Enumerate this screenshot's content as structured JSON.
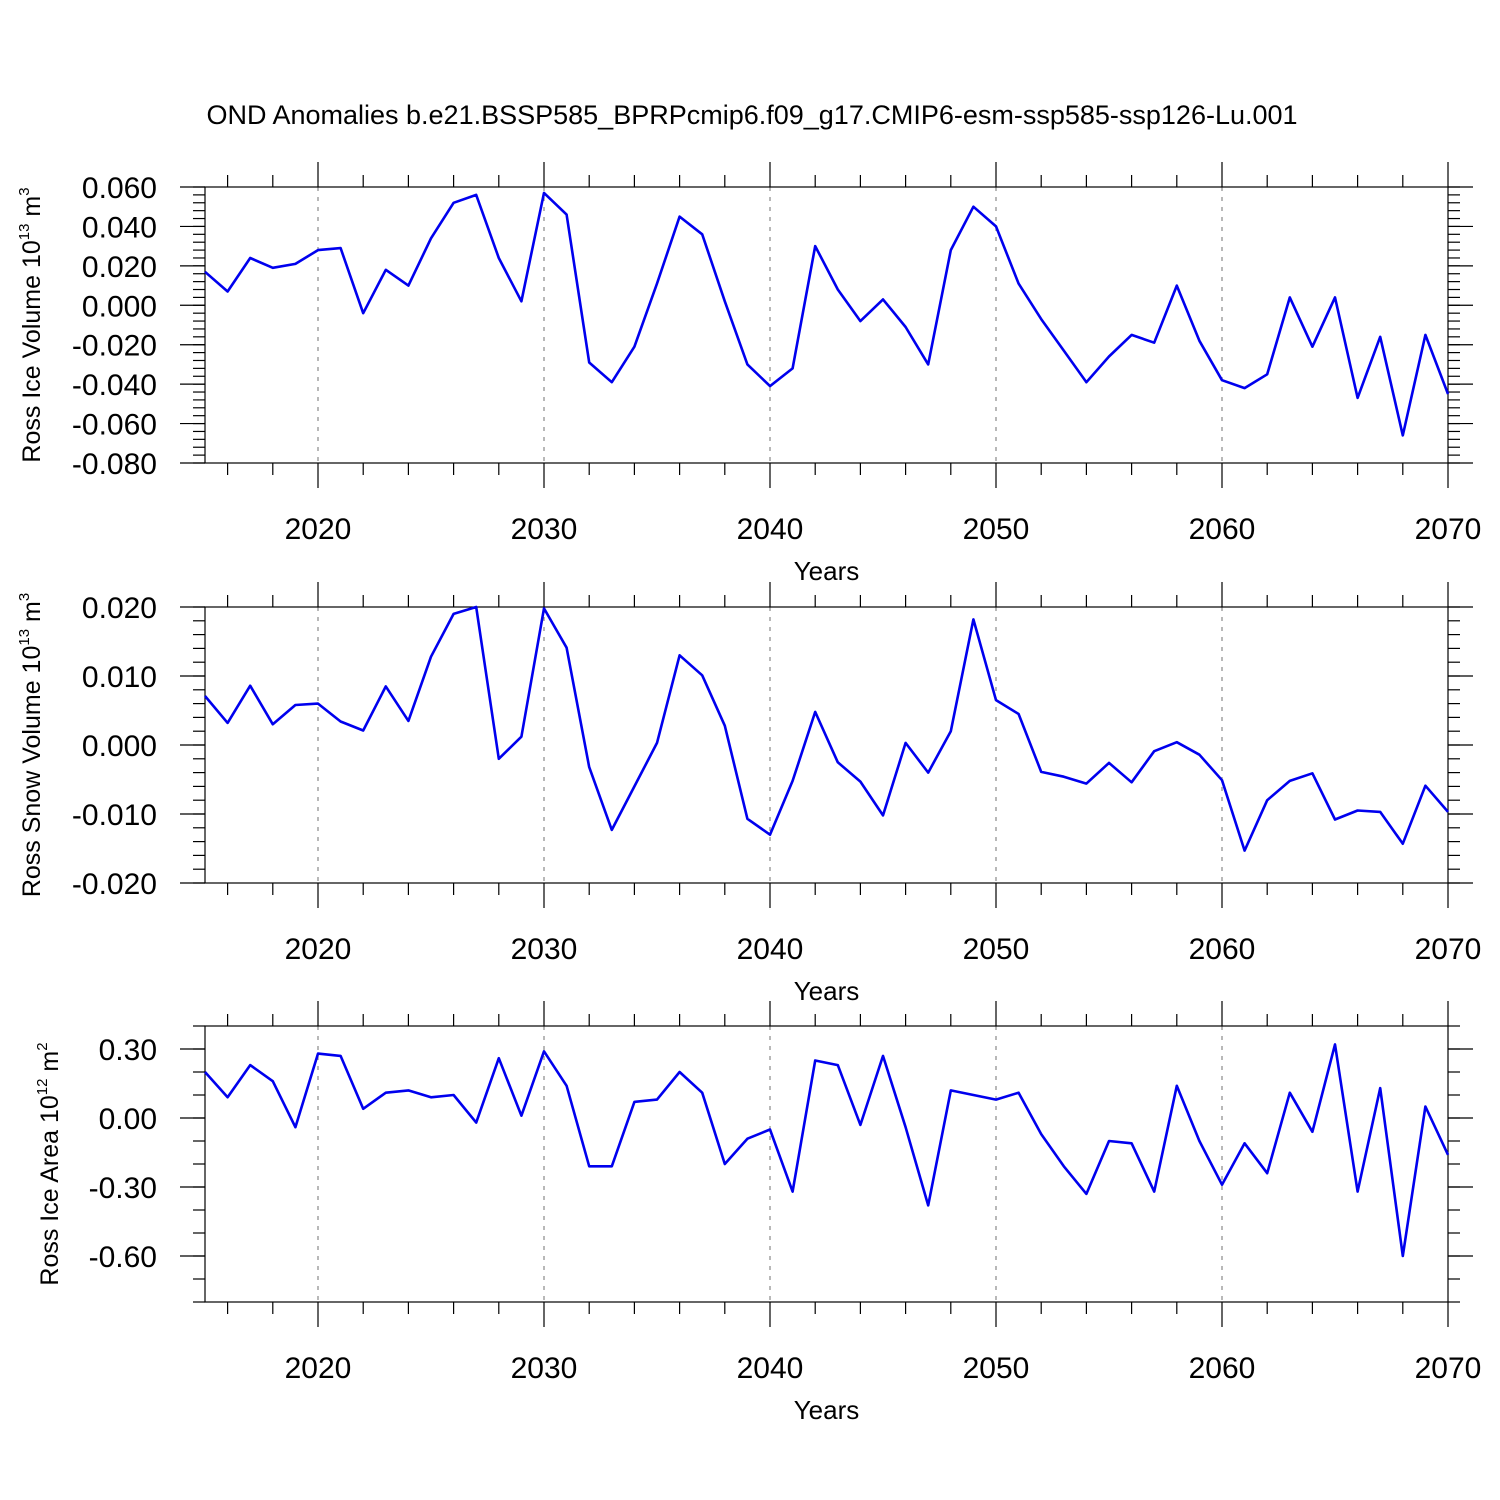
{
  "title": "OND Anomalies b.e21.BSSP585_BPRPcmip6.f09_g17.CMIP6-esm-ssp585-ssp126-Lu.001",
  "chart_data": [
    {
      "type": "line",
      "ylabel": {
        "text": "Ross Ice Volume 10",
        "sup": "13",
        "unit": " m",
        "unit_sup": "3"
      },
      "xlabel": "Years",
      "xlim": [
        2015,
        2070
      ],
      "ylim": [
        -0.08,
        0.06
      ],
      "x_ticks": [
        2020,
        2030,
        2040,
        2050,
        2060,
        2070
      ],
      "x_tick_labels": [
        "2020",
        "2030",
        "2040",
        "2050",
        "2060",
        "2070"
      ],
      "y_ticks": [
        0.06,
        0.04,
        0.02,
        0.0,
        -0.02,
        -0.04,
        -0.06,
        -0.08
      ],
      "y_tick_labels": [
        "0.060",
        "0.040",
        "0.020",
        "0.000",
        "-0.020",
        "-0.040",
        "-0.060",
        "-0.080"
      ],
      "y_minor_step": 0.004,
      "grid": "dashed vertical lines at major x ticks",
      "color": "#0000ee",
      "x": [
        2015,
        2016,
        2017,
        2018,
        2019,
        2020,
        2021,
        2022,
        2023,
        2024,
        2025,
        2026,
        2027,
        2028,
        2029,
        2030,
        2031,
        2032,
        2033,
        2034,
        2035,
        2036,
        2037,
        2038,
        2039,
        2040,
        2041,
        2042,
        2043,
        2044,
        2045,
        2046,
        2047,
        2048,
        2049,
        2050,
        2051,
        2052,
        2053,
        2054,
        2055,
        2056,
        2057,
        2058,
        2059,
        2060,
        2061,
        2062,
        2063,
        2064,
        2065,
        2066,
        2067,
        2068,
        2069,
        2070
      ],
      "values": [
        0.017,
        0.007,
        0.024,
        0.019,
        0.021,
        0.028,
        0.029,
        -0.004,
        0.018,
        0.01,
        0.034,
        0.052,
        0.056,
        0.024,
        0.002,
        0.057,
        0.046,
        -0.029,
        -0.039,
        -0.021,
        0.011,
        0.045,
        0.036,
        0.002,
        -0.03,
        -0.041,
        -0.032,
        0.03,
        0.008,
        -0.008,
        0.003,
        -0.011,
        -0.03,
        0.028,
        0.05,
        0.04,
        0.011,
        -0.007,
        -0.023,
        -0.039,
        -0.026,
        -0.015,
        -0.019,
        0.01,
        -0.018,
        -0.038,
        -0.042,
        -0.035,
        0.004,
        -0.021,
        0.004,
        -0.047,
        -0.016,
        -0.066,
        -0.015,
        -0.045
      ]
    },
    {
      "type": "line",
      "ylabel": {
        "text": "Ross Snow Volume 10",
        "sup": "13",
        "unit": " m",
        "unit_sup": "3"
      },
      "xlabel": "Years",
      "xlim": [
        2015,
        2070
      ],
      "ylim": [
        -0.02,
        0.02
      ],
      "x_ticks": [
        2020,
        2030,
        2040,
        2050,
        2060,
        2070
      ],
      "x_tick_labels": [
        "2020",
        "2030",
        "2040",
        "2050",
        "2060",
        "2070"
      ],
      "y_ticks": [
        0.02,
        0.01,
        0.0,
        -0.01,
        -0.02
      ],
      "y_tick_labels": [
        "0.020",
        "0.010",
        "0.000",
        "-0.010",
        "-0.020"
      ],
      "y_minor_step": 0.002,
      "grid": "dashed vertical lines at major x ticks",
      "color": "#0000ee",
      "x": [
        2015,
        2016,
        2017,
        2018,
        2019,
        2020,
        2021,
        2022,
        2023,
        2024,
        2025,
        2026,
        2027,
        2028,
        2029,
        2030,
        2031,
        2032,
        2033,
        2034,
        2035,
        2036,
        2037,
        2038,
        2039,
        2040,
        2041,
        2042,
        2043,
        2044,
        2045,
        2046,
        2047,
        2048,
        2049,
        2050,
        2051,
        2052,
        2053,
        2054,
        2055,
        2056,
        2057,
        2058,
        2059,
        2060,
        2061,
        2062,
        2063,
        2064,
        2065,
        2066,
        2067,
        2068,
        2069,
        2070
      ],
      "values": [
        0.0071,
        0.0032,
        0.0086,
        0.003,
        0.0058,
        0.006,
        0.0034,
        0.0021,
        0.0085,
        0.0035,
        0.0128,
        0.019,
        0.02,
        -0.002,
        0.0012,
        0.0198,
        0.0141,
        -0.0032,
        -0.0123,
        -0.006,
        0.0003,
        0.013,
        0.0101,
        0.0028,
        -0.0107,
        -0.013,
        -0.0052,
        0.0048,
        -0.0025,
        -0.0053,
        -0.0102,
        0.0003,
        -0.004,
        0.002,
        0.0182,
        0.0065,
        0.0045,
        -0.0039,
        -0.0046,
        -0.0056,
        -0.0026,
        -0.0054,
        -0.0009,
        0.0004,
        -0.0014,
        -0.0051,
        -0.0153,
        -0.008,
        -0.0052,
        -0.0041,
        -0.0108,
        -0.0095,
        -0.0097,
        -0.0143,
        -0.0059,
        -0.0097
      ]
    },
    {
      "type": "line",
      "ylabel": {
        "text": "Ross Ice Area 10",
        "sup": "12",
        "unit": " m",
        "unit_sup": "2"
      },
      "xlabel": "Years",
      "xlim": [
        2015,
        2070
      ],
      "ylim": [
        -0.8,
        0.4
      ],
      "x_ticks": [
        2020,
        2030,
        2040,
        2050,
        2060,
        2070
      ],
      "x_tick_labels": [
        "2020",
        "2030",
        "2040",
        "2050",
        "2060",
        "2070"
      ],
      "y_ticks": [
        0.3,
        0.0,
        -0.3,
        -0.6
      ],
      "y_tick_labels": [
        "0.30",
        "0.00",
        "-0.30",
        "-0.60"
      ],
      "y_minor_step": 0.1,
      "grid": "dashed vertical lines at major x ticks",
      "color": "#0000ee",
      "x": [
        2015,
        2016,
        2017,
        2018,
        2019,
        2020,
        2021,
        2022,
        2023,
        2024,
        2025,
        2026,
        2027,
        2028,
        2029,
        2030,
        2031,
        2032,
        2033,
        2034,
        2035,
        2036,
        2037,
        2038,
        2039,
        2040,
        2041,
        2042,
        2043,
        2044,
        2045,
        2046,
        2047,
        2048,
        2049,
        2050,
        2051,
        2052,
        2053,
        2054,
        2055,
        2056,
        2057,
        2058,
        2059,
        2060,
        2061,
        2062,
        2063,
        2064,
        2065,
        2066,
        2067,
        2068,
        2069,
        2070
      ],
      "values": [
        0.2,
        0.09,
        0.23,
        0.16,
        -0.04,
        0.28,
        0.27,
        0.04,
        0.11,
        0.12,
        0.09,
        0.1,
        -0.02,
        0.26,
        0.01,
        0.29,
        0.14,
        -0.21,
        -0.21,
        0.07,
        0.08,
        0.2,
        0.11,
        -0.2,
        -0.09,
        -0.05,
        -0.32,
        0.25,
        0.23,
        -0.03,
        0.27,
        -0.04,
        -0.38,
        0.12,
        0.1,
        0.08,
        0.11,
        -0.07,
        -0.21,
        -0.33,
        -0.1,
        -0.11,
        -0.32,
        0.14,
        -0.1,
        -0.29,
        -0.11,
        -0.24,
        0.11,
        -0.06,
        0.32,
        -0.32,
        0.13,
        -0.6,
        0.05,
        -0.16
      ]
    }
  ]
}
